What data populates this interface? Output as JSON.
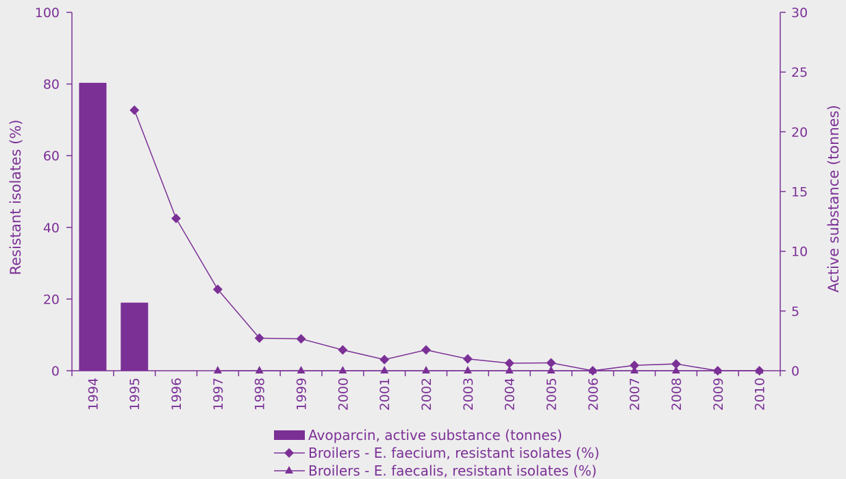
{
  "chart_data": {
    "type": "bar+line",
    "categories": [
      "1994",
      "1995",
      "1996",
      "1997",
      "1998",
      "1999",
      "2000",
      "2001",
      "2002",
      "2003",
      "2004",
      "2005",
      "2006",
      "2007",
      "2008",
      "2009",
      "2010"
    ],
    "bars": {
      "name": "Avoparcin, active substance (tonnes)",
      "axis": "right",
      "values": [
        24.1,
        5.7,
        0,
        0,
        0,
        0,
        0,
        0,
        0,
        0,
        0,
        0,
        0,
        0,
        0,
        0,
        0
      ]
    },
    "series": [
      {
        "name": "Broilers - E. faecium, resistant isolates (%)",
        "axis": "left",
        "marker": "diamond",
        "values": [
          null,
          72.7,
          42.5,
          22.7,
          9.1,
          8.9,
          5.8,
          3.1,
          5.8,
          3.3,
          2.1,
          2.2,
          0,
          1.5,
          1.9,
          0,
          0
        ]
      },
      {
        "name": "Broilers - E. faecalis, resistant isolates (%)",
        "axis": "left",
        "marker": "triangle",
        "values": [
          null,
          null,
          null,
          0,
          0,
          0,
          0,
          0,
          0,
          0,
          0,
          0,
          0,
          0,
          0,
          0,
          0
        ]
      }
    ],
    "y_left": {
      "label": "Resistant isolates (%)",
      "range": [
        0,
        100
      ],
      "ticks": [
        0,
        20,
        40,
        60,
        80,
        100
      ]
    },
    "y_right": {
      "label": "Active substance (tonnes)",
      "range": [
        0,
        30
      ],
      "ticks": [
        0,
        5,
        10,
        15,
        20,
        25,
        30
      ]
    },
    "grid": false,
    "legend_position": "bottom"
  },
  "colors": {
    "primary": "#7b3096",
    "background": "#ededed"
  }
}
